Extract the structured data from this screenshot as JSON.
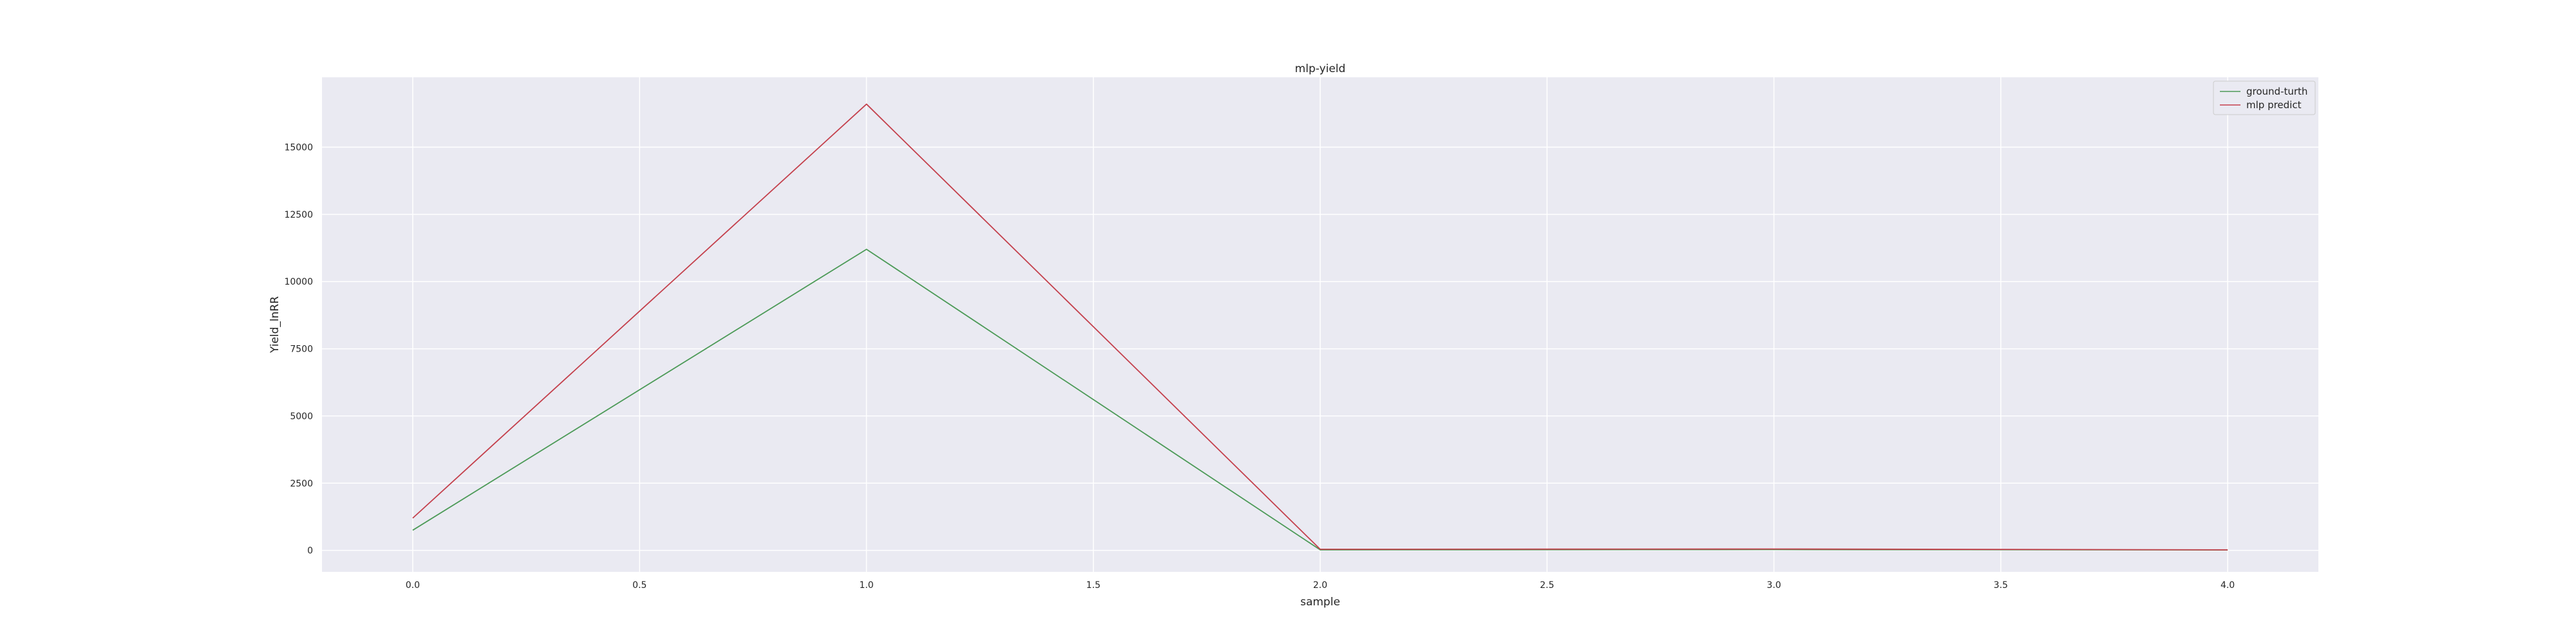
{
  "chart_data": {
    "type": "line",
    "title": "mlp-yield",
    "xlabel": "sample",
    "ylabel": "Yield_lnRR",
    "x": [
      0,
      1,
      2,
      3,
      4
    ],
    "xlim": [
      -0.2,
      4.2
    ],
    "ylim": [
      -800,
      17600
    ],
    "xticks": [
      0.0,
      0.5,
      1.0,
      1.5,
      2.0,
      2.5,
      3.0,
      3.5,
      4.0
    ],
    "xtick_labels": [
      "0.0",
      "0.5",
      "1.0",
      "1.5",
      "2.0",
      "2.5",
      "3.0",
      "3.5",
      "4.0"
    ],
    "yticks": [
      0,
      2500,
      5000,
      7500,
      10000,
      12500,
      15000
    ],
    "ytick_labels": [
      "0",
      "2500",
      "5000",
      "7500",
      "10000",
      "12500",
      "15000"
    ],
    "grid": true,
    "legend_position": "top-right",
    "series": [
      {
        "name": "ground-turth",
        "color": "#4c9a57",
        "values": [
          750,
          11200,
          20,
          30,
          15
        ]
      },
      {
        "name": "mlp predict",
        "color": "#c4404c",
        "values": [
          1200,
          16600,
          40,
          50,
          20
        ]
      }
    ]
  }
}
